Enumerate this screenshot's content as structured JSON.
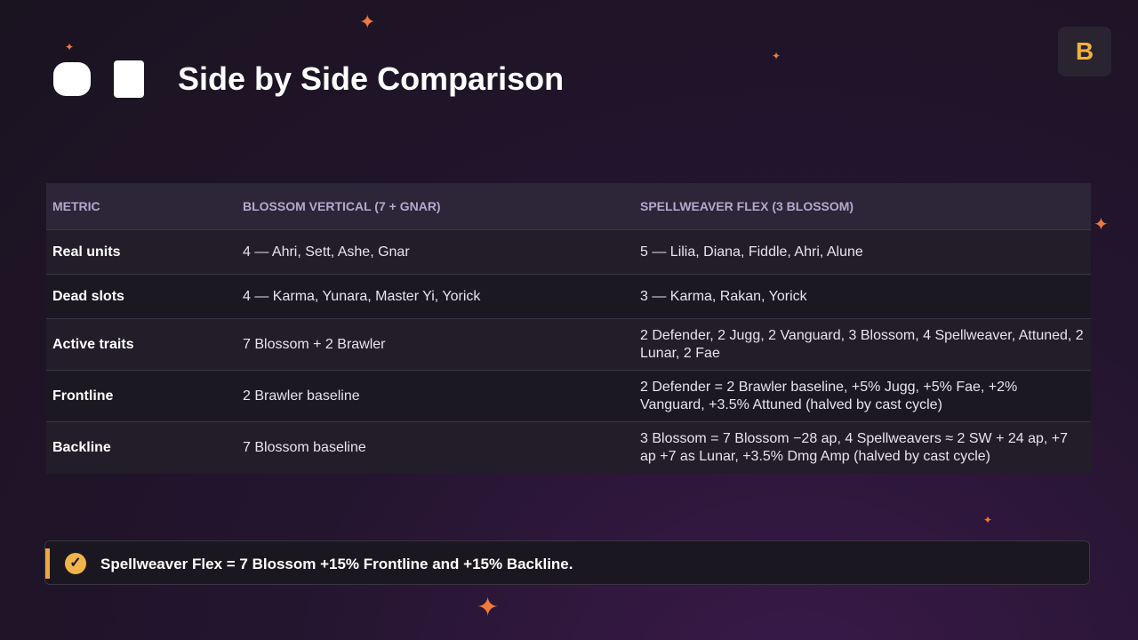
{
  "header": {
    "title": "Side by Side Comparison"
  },
  "table": {
    "columns": [
      "METRIC",
      "BLOSSOM VERTICAL (7 + GNAR)",
      "SPELLWEAVER FLEX (3 BLOSSOM)"
    ],
    "rows": [
      [
        "Real units",
        "4 — Ahri, Sett, Ashe, Gnar",
        "5 — Lilia, Diana, Fiddle, Ahri, Alune"
      ],
      [
        "Dead slots",
        "4 — Karma, Yunara, Master Yi, Yorick",
        "3 — Karma, Rakan, Yorick"
      ],
      [
        "Active traits",
        "7 Blossom + 2 Brawler",
        "2 Defender, 2 Jugg, 2 Vanguard, 3 Blossom, 4 Spellweaver, Attuned, 2 Lunar, 2 Fae"
      ],
      [
        "Frontline",
        "2 Brawler baseline",
        "2 Defender = 2 Brawler baseline, +5% Jugg, +5% Fae, +2% Vanguard, +3.5% Attuned (halved by cast cycle)"
      ],
      [
        "Backline",
        "7 Blossom baseline",
        "3 Blossom = 7 Blossom −28 ap, 4 Spellweavers ≈ 2 SW + 24 ap, +7 ap +7 as Lunar, +3.5% Dmg Amp (halved by cast cycle)"
      ]
    ]
  },
  "callout": {
    "text": "Spellweaver Flex = 7 Blossom +15% Frontline and +15% Backline."
  }
}
